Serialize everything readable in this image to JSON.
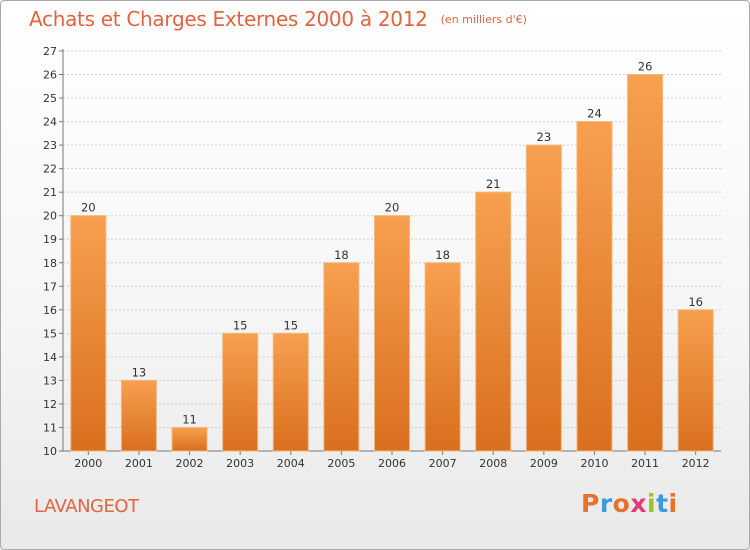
{
  "header": {
    "title": "Achats et Charges Externes 2000 à 2012",
    "unit_note": "(en milliers d'€)"
  },
  "footer": {
    "commune": "LAVANGEOT",
    "brand": "Proxiti",
    "brand_colors": [
      "#e8702a",
      "#3b9be0",
      "#e8702a",
      "#e23b7a",
      "#9bc32a",
      "#3b9be0",
      "#e8702a"
    ]
  },
  "colors": {
    "title": "#e0643f",
    "bar_top": "#f7a04f",
    "bar_bottom": "#d96f1e",
    "grid": "#cfcfcf"
  },
  "chart_data": {
    "type": "bar",
    "title": "Achats et Charges Externes 2000 à 2012",
    "subtitle": "(en milliers d'€)",
    "xlabel": "",
    "ylabel": "",
    "categories": [
      "2000",
      "2001",
      "2002",
      "2003",
      "2004",
      "2005",
      "2006",
      "2007",
      "2008",
      "2009",
      "2010",
      "2011",
      "2012"
    ],
    "values": [
      20,
      13,
      11,
      15,
      15,
      18,
      20,
      18,
      21,
      23,
      24,
      26,
      16
    ],
    "ylim": [
      10,
      27
    ],
    "yticks": [
      10,
      11,
      12,
      13,
      14,
      15,
      16,
      17,
      18,
      19,
      20,
      21,
      22,
      23,
      24,
      25,
      26,
      27
    ],
    "grid": true,
    "data_labels": true
  }
}
